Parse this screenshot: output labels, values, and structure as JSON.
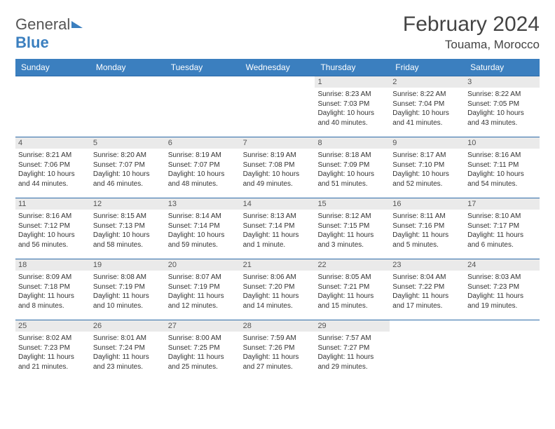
{
  "brand": {
    "part1": "General",
    "part2": "Blue"
  },
  "title": "February 2024",
  "subtitle": "Touama, Morocco",
  "colors": {
    "header_bg": "#3b7fbf",
    "header_text": "#ffffff",
    "week_border": "#2c6aa8",
    "daynum_bg": "#eaeaea",
    "text": "#333333"
  },
  "day_headers": [
    "Sunday",
    "Monday",
    "Tuesday",
    "Wednesday",
    "Thursday",
    "Friday",
    "Saturday"
  ],
  "weeks": [
    [
      {
        "n": "",
        "sr": "",
        "ss": "",
        "dl": ""
      },
      {
        "n": "",
        "sr": "",
        "ss": "",
        "dl": ""
      },
      {
        "n": "",
        "sr": "",
        "ss": "",
        "dl": ""
      },
      {
        "n": "",
        "sr": "",
        "ss": "",
        "dl": ""
      },
      {
        "n": "1",
        "sr": "Sunrise: 8:23 AM",
        "ss": "Sunset: 7:03 PM",
        "dl": "Daylight: 10 hours and 40 minutes."
      },
      {
        "n": "2",
        "sr": "Sunrise: 8:22 AM",
        "ss": "Sunset: 7:04 PM",
        "dl": "Daylight: 10 hours and 41 minutes."
      },
      {
        "n": "3",
        "sr": "Sunrise: 8:22 AM",
        "ss": "Sunset: 7:05 PM",
        "dl": "Daylight: 10 hours and 43 minutes."
      }
    ],
    [
      {
        "n": "4",
        "sr": "Sunrise: 8:21 AM",
        "ss": "Sunset: 7:06 PM",
        "dl": "Daylight: 10 hours and 44 minutes."
      },
      {
        "n": "5",
        "sr": "Sunrise: 8:20 AM",
        "ss": "Sunset: 7:07 PM",
        "dl": "Daylight: 10 hours and 46 minutes."
      },
      {
        "n": "6",
        "sr": "Sunrise: 8:19 AM",
        "ss": "Sunset: 7:07 PM",
        "dl": "Daylight: 10 hours and 48 minutes."
      },
      {
        "n": "7",
        "sr": "Sunrise: 8:19 AM",
        "ss": "Sunset: 7:08 PM",
        "dl": "Daylight: 10 hours and 49 minutes."
      },
      {
        "n": "8",
        "sr": "Sunrise: 8:18 AM",
        "ss": "Sunset: 7:09 PM",
        "dl": "Daylight: 10 hours and 51 minutes."
      },
      {
        "n": "9",
        "sr": "Sunrise: 8:17 AM",
        "ss": "Sunset: 7:10 PM",
        "dl": "Daylight: 10 hours and 52 minutes."
      },
      {
        "n": "10",
        "sr": "Sunrise: 8:16 AM",
        "ss": "Sunset: 7:11 PM",
        "dl": "Daylight: 10 hours and 54 minutes."
      }
    ],
    [
      {
        "n": "11",
        "sr": "Sunrise: 8:16 AM",
        "ss": "Sunset: 7:12 PM",
        "dl": "Daylight: 10 hours and 56 minutes."
      },
      {
        "n": "12",
        "sr": "Sunrise: 8:15 AM",
        "ss": "Sunset: 7:13 PM",
        "dl": "Daylight: 10 hours and 58 minutes."
      },
      {
        "n": "13",
        "sr": "Sunrise: 8:14 AM",
        "ss": "Sunset: 7:14 PM",
        "dl": "Daylight: 10 hours and 59 minutes."
      },
      {
        "n": "14",
        "sr": "Sunrise: 8:13 AM",
        "ss": "Sunset: 7:14 PM",
        "dl": "Daylight: 11 hours and 1 minute."
      },
      {
        "n": "15",
        "sr": "Sunrise: 8:12 AM",
        "ss": "Sunset: 7:15 PM",
        "dl": "Daylight: 11 hours and 3 minutes."
      },
      {
        "n": "16",
        "sr": "Sunrise: 8:11 AM",
        "ss": "Sunset: 7:16 PM",
        "dl": "Daylight: 11 hours and 5 minutes."
      },
      {
        "n": "17",
        "sr": "Sunrise: 8:10 AM",
        "ss": "Sunset: 7:17 PM",
        "dl": "Daylight: 11 hours and 6 minutes."
      }
    ],
    [
      {
        "n": "18",
        "sr": "Sunrise: 8:09 AM",
        "ss": "Sunset: 7:18 PM",
        "dl": "Daylight: 11 hours and 8 minutes."
      },
      {
        "n": "19",
        "sr": "Sunrise: 8:08 AM",
        "ss": "Sunset: 7:19 PM",
        "dl": "Daylight: 11 hours and 10 minutes."
      },
      {
        "n": "20",
        "sr": "Sunrise: 8:07 AM",
        "ss": "Sunset: 7:19 PM",
        "dl": "Daylight: 11 hours and 12 minutes."
      },
      {
        "n": "21",
        "sr": "Sunrise: 8:06 AM",
        "ss": "Sunset: 7:20 PM",
        "dl": "Daylight: 11 hours and 14 minutes."
      },
      {
        "n": "22",
        "sr": "Sunrise: 8:05 AM",
        "ss": "Sunset: 7:21 PM",
        "dl": "Daylight: 11 hours and 15 minutes."
      },
      {
        "n": "23",
        "sr": "Sunrise: 8:04 AM",
        "ss": "Sunset: 7:22 PM",
        "dl": "Daylight: 11 hours and 17 minutes."
      },
      {
        "n": "24",
        "sr": "Sunrise: 8:03 AM",
        "ss": "Sunset: 7:23 PM",
        "dl": "Daylight: 11 hours and 19 minutes."
      }
    ],
    [
      {
        "n": "25",
        "sr": "Sunrise: 8:02 AM",
        "ss": "Sunset: 7:23 PM",
        "dl": "Daylight: 11 hours and 21 minutes."
      },
      {
        "n": "26",
        "sr": "Sunrise: 8:01 AM",
        "ss": "Sunset: 7:24 PM",
        "dl": "Daylight: 11 hours and 23 minutes."
      },
      {
        "n": "27",
        "sr": "Sunrise: 8:00 AM",
        "ss": "Sunset: 7:25 PM",
        "dl": "Daylight: 11 hours and 25 minutes."
      },
      {
        "n": "28",
        "sr": "Sunrise: 7:59 AM",
        "ss": "Sunset: 7:26 PM",
        "dl": "Daylight: 11 hours and 27 minutes."
      },
      {
        "n": "29",
        "sr": "Sunrise: 7:57 AM",
        "ss": "Sunset: 7:27 PM",
        "dl": "Daylight: 11 hours and 29 minutes."
      },
      {
        "n": "",
        "sr": "",
        "ss": "",
        "dl": ""
      },
      {
        "n": "",
        "sr": "",
        "ss": "",
        "dl": ""
      }
    ]
  ]
}
